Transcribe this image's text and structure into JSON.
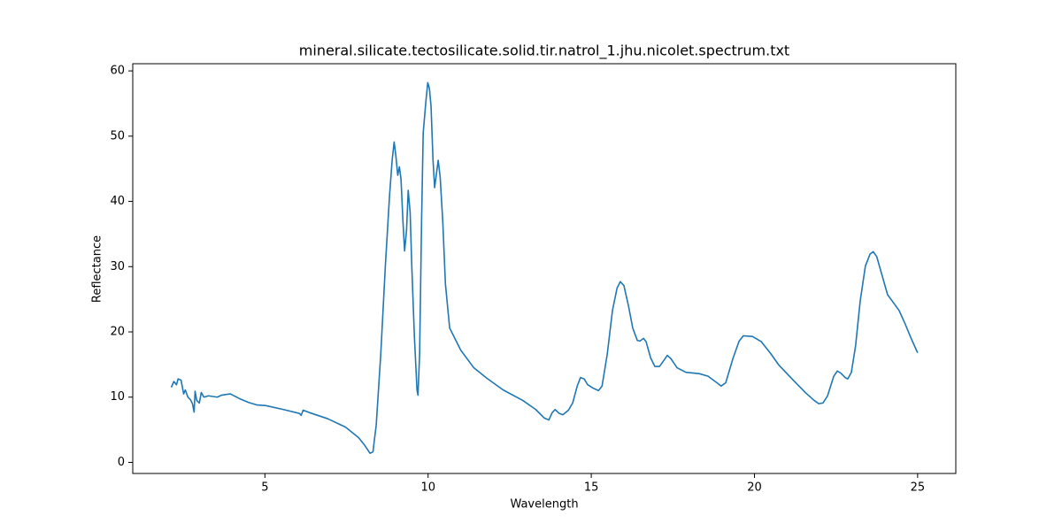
{
  "chart_data": {
    "type": "line",
    "title": "mineral.silicate.tectosilicate.solid.tir.natrol_1.jhu.nicolet.spectrum.txt",
    "x_label": "Wavelength",
    "y_label": "Reflectance",
    "color": "#1f77b4",
    "x": [
      2.13,
      2.21,
      2.29,
      2.34,
      2.43,
      2.51,
      2.56,
      2.64,
      2.72,
      2.78,
      2.83,
      2.86,
      2.91,
      2.99,
      3.05,
      3.13,
      3.27,
      3.54,
      3.67,
      3.94,
      4.21,
      4.49,
      4.76,
      5.03,
      5.57,
      6.06,
      6.11,
      6.17,
      6.38,
      6.92,
      7.47,
      7.87,
      8.06,
      8.22,
      8.31,
      8.41,
      8.55,
      8.69,
      8.82,
      8.9,
      8.96,
      9.01,
      9.07,
      9.12,
      9.17,
      9.23,
      9.28,
      9.34,
      9.39,
      9.45,
      9.5,
      9.58,
      9.66,
      9.69,
      9.74,
      9.8,
      9.85,
      9.93,
      9.99,
      10.04,
      10.09,
      10.15,
      10.2,
      10.26,
      10.31,
      10.37,
      10.45,
      10.53,
      10.66,
      11.0,
      11.4,
      11.8,
      12.3,
      12.9,
      13.3,
      13.56,
      13.7,
      13.8,
      13.89,
      14.02,
      14.13,
      14.3,
      14.43,
      14.57,
      14.67,
      14.78,
      14.89,
      15.05,
      15.22,
      15.33,
      15.49,
      15.65,
      15.79,
      15.89,
      16.0,
      16.14,
      16.27,
      16.41,
      16.49,
      16.6,
      16.68,
      16.82,
      16.95,
      17.09,
      17.22,
      17.33,
      17.44,
      17.63,
      17.9,
      18.31,
      18.58,
      18.85,
      18.98,
      19.12,
      19.34,
      19.53,
      19.66,
      19.94,
      20.21,
      20.48,
      20.75,
      21.15,
      21.56,
      21.83,
      21.97,
      22.1,
      22.24,
      22.43,
      22.54,
      22.64,
      22.78,
      22.86,
      22.97,
      23.1,
      23.24,
      23.4,
      23.54,
      23.64,
      23.75,
      23.92,
      24.08,
      24.27,
      24.43,
      24.62,
      24.81,
      25.0
    ],
    "values": [
      11.5,
      12.4,
      11.9,
      12.8,
      12.6,
      10.5,
      11.1,
      10.0,
      9.6,
      9.0,
      7.7,
      10.9,
      9.5,
      9.1,
      10.7,
      10.0,
      10.2,
      10.0,
      10.3,
      10.5,
      9.8,
      9.2,
      8.8,
      8.7,
      8.1,
      7.5,
      7.2,
      8.0,
      7.6,
      6.7,
      5.4,
      3.8,
      2.6,
      1.4,
      1.6,
      5.7,
      16.6,
      30.1,
      41.0,
      46.4,
      49.1,
      47.1,
      44.0,
      45.3,
      43.4,
      36.9,
      32.4,
      35.6,
      41.7,
      38.3,
      30.1,
      19.3,
      11.1,
      10.3,
      16.6,
      36.9,
      50.5,
      55.2,
      58.2,
      57.3,
      54.6,
      46.4,
      42.1,
      44.4,
      46.3,
      43.7,
      36.9,
      27.4,
      20.6,
      17.2,
      14.5,
      12.9,
      11.1,
      9.5,
      8.1,
      6.8,
      6.5,
      7.6,
      8.1,
      7.5,
      7.3,
      8.0,
      9.1,
      11.7,
      13.0,
      12.8,
      11.9,
      11.4,
      11.0,
      11.7,
      16.6,
      23.3,
      26.7,
      27.7,
      27.1,
      24.0,
      20.6,
      18.7,
      18.6,
      19.0,
      18.5,
      16.0,
      14.7,
      14.7,
      15.6,
      16.4,
      15.9,
      14.5,
      13.8,
      13.6,
      13.2,
      12.2,
      11.7,
      12.2,
      15.9,
      18.6,
      19.4,
      19.3,
      18.5,
      16.8,
      14.9,
      12.8,
      10.7,
      9.5,
      9.0,
      9.1,
      10.2,
      13.2,
      14.0,
      13.7,
      13.0,
      12.8,
      13.8,
      17.9,
      24.7,
      30.1,
      31.9,
      32.3,
      31.5,
      28.5,
      25.7,
      24.4,
      23.3,
      21.2,
      18.9,
      16.8
    ],
    "xlim": [
      0.95,
      26.17
    ],
    "ylim": [
      -1.7,
      61.1
    ],
    "xticks": [
      5,
      10,
      15,
      20,
      25
    ],
    "yticks": [
      0,
      10,
      20,
      30,
      40,
      50,
      60
    ]
  }
}
